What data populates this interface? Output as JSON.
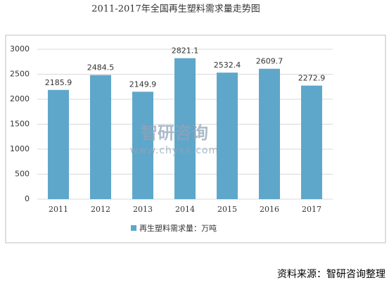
{
  "chart_data": {
    "type": "bar",
    "title": "2011-2017年全国再生塑料需求量走势图",
    "categories": [
      "2011",
      "2012",
      "2013",
      "2014",
      "2015",
      "2016",
      "2017"
    ],
    "series": [
      {
        "name": "再生塑料需求量：万吨",
        "color": "#5ea7cb",
        "values": [
          2185.9,
          2484.5,
          2149.9,
          2821.1,
          2532.4,
          2609.7,
          2272.9
        ]
      }
    ],
    "ylim": [
      0,
      3000
    ],
    "yticks": [
      0,
      500,
      1000,
      1500,
      2000,
      2500,
      3000
    ],
    "grid": true,
    "legend": "bottom",
    "annotations": [
      "智研咨询",
      "www.chyxx.com"
    ],
    "source": "资料来源：智研咨询整理"
  }
}
